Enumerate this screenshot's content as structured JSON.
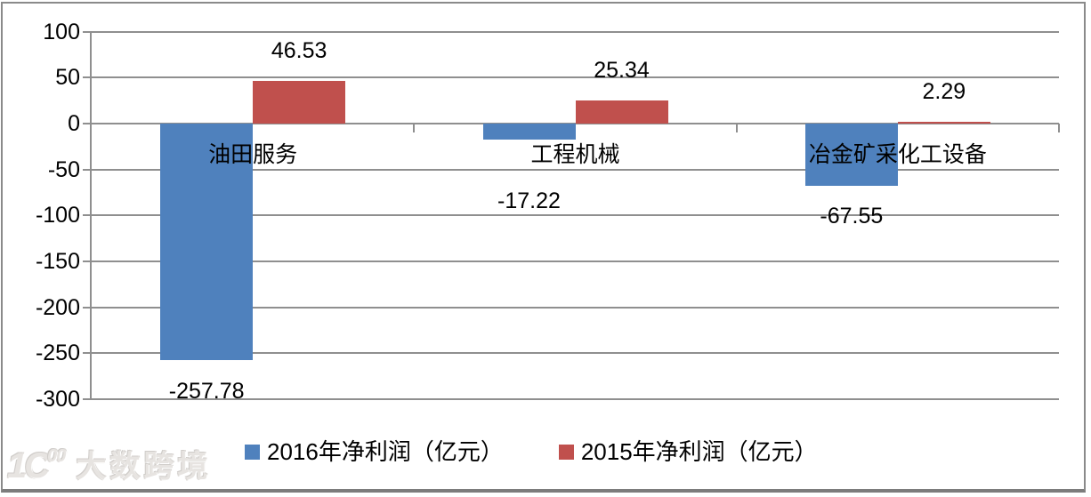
{
  "chart_data": {
    "type": "bar",
    "categories": [
      "油田服务",
      "工程机械",
      "冶金矿采化工设备"
    ],
    "series": [
      {
        "name": "2016年净利润（亿元）",
        "color": "#4F81BD",
        "values": [
          -257.78,
          -17.22,
          -67.55
        ]
      },
      {
        "name": "2015年净利润（亿元）",
        "color": "#C0504D",
        "values": [
          46.53,
          25.34,
          2.29
        ]
      }
    ],
    "data_labels": {
      "series_2016": [
        "-257.78",
        "-17.22",
        "-67.55"
      ],
      "series_2015": [
        "46.53",
        "25.34",
        "2.29"
      ]
    },
    "title": "",
    "xlabel": "",
    "ylabel": "",
    "ylim": [
      -300,
      100
    ],
    "yticks": [
      100,
      50,
      0,
      -50,
      -100,
      -150,
      -200,
      -250,
      -300
    ],
    "grid": true,
    "gridline_color": "#8f8f8f",
    "legend_position": "bottom"
  },
  "legend": {
    "items": [
      {
        "label": "2016年净利润（亿元）",
        "color": "#4F81BD"
      },
      {
        "label": "2015年净利润（亿元）",
        "color": "#C0504D"
      }
    ]
  },
  "watermark": {
    "logo_main": "1C",
    "logo_sup": "00",
    "text": "大数跨境"
  }
}
